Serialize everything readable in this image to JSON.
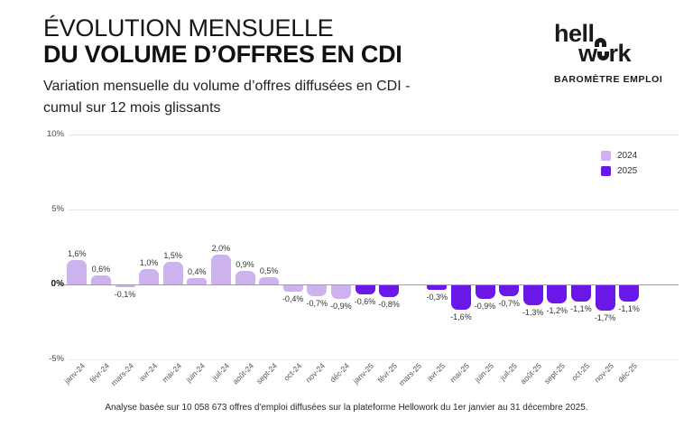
{
  "header": {
    "title_line1": "ÉVOLUTION MENSUELLE",
    "title_line2": "DU VOLUME D’OFFRES EN CDI",
    "subtitle_line1": "Variation mensuelle du volume d’offres diffusées en CDI -",
    "subtitle_line2": "cumul sur 12 mois glissants"
  },
  "brand": {
    "word_top": "hell",
    "word_bottom_left": "w",
    "word_bottom_right": "rk",
    "tagline": "BAROMÈTRE EMPLOI"
  },
  "legend": {
    "items": [
      {
        "label": "2024",
        "color": "#CDB3ED"
      },
      {
        "label": "2025",
        "color": "#6A18E8"
      }
    ]
  },
  "chart_data": {
    "type": "bar",
    "title": "Évolution mensuelle du volume d’offres en CDI",
    "xlabel": "",
    "ylabel": "",
    "ylim": [
      -5,
      10
    ],
    "grid": true,
    "legend_position": "top-right",
    "yticks": [
      {
        "label": "10%",
        "value": 10
      },
      {
        "label": "5%",
        "value": 5
      },
      {
        "label": "0%",
        "value": 0
      },
      {
        "label": "-5%",
        "value": -5
      }
    ],
    "categories": [
      "janv-24",
      "févr-24",
      "mars-24",
      "avr-24",
      "mai-24",
      "juin-24",
      "juil-24",
      "août-24",
      "sept-24",
      "oct-24",
      "nov-24",
      "déc-24",
      "janv-25",
      "févr-25",
      "mars-25",
      "avr-25",
      "mai-25",
      "juin-25",
      "juil-25",
      "août-25",
      "sept-25",
      "oct-25",
      "nov-25",
      "déc-25"
    ],
    "series": [
      {
        "name": "2024",
        "color": "#CDB3ED",
        "values": [
          1.6,
          0.6,
          -0.1,
          1.0,
          1.5,
          0.4,
          2.0,
          0.9,
          0.5,
          -0.4,
          -0.7,
          -0.9,
          null,
          null,
          null,
          null,
          null,
          null,
          null,
          null,
          null,
          null,
          null,
          null
        ],
        "labels": [
          "1,6%",
          "0,6%",
          "-0,1%",
          "1,0%",
          "1,5%",
          "0,4%",
          "2,0%",
          "0,9%",
          "0,5%",
          "-0,4%",
          "-0,7%",
          "-0,9%",
          null,
          null,
          null,
          null,
          null,
          null,
          null,
          null,
          null,
          null,
          null,
          null
        ]
      },
      {
        "name": "2025",
        "color": "#6A18E8",
        "values": [
          null,
          null,
          null,
          null,
          null,
          null,
          null,
          null,
          null,
          null,
          null,
          null,
          -0.6,
          -0.8,
          0.0,
          -0.3,
          -1.6,
          -0.9,
          -0.7,
          -1.3,
          -1.2,
          -1.1,
          -1.7,
          -1.1
        ],
        "labels": [
          null,
          null,
          null,
          null,
          null,
          null,
          null,
          null,
          null,
          null,
          null,
          null,
          "-0,6%",
          "-0,8%",
          "",
          "-0,3%",
          "-1,6%",
          "-0,9%",
          "-0,7%",
          "-1,3%",
          "-1,2%",
          "-1,1%",
          "-1,7%",
          "-1,1%"
        ]
      }
    ]
  },
  "footer": {
    "text": "Analyse basée sur 10 058 673 offres d'emploi diffusées sur la plateforme Hellowork du 1er janvier au 31 décembre 2025."
  }
}
